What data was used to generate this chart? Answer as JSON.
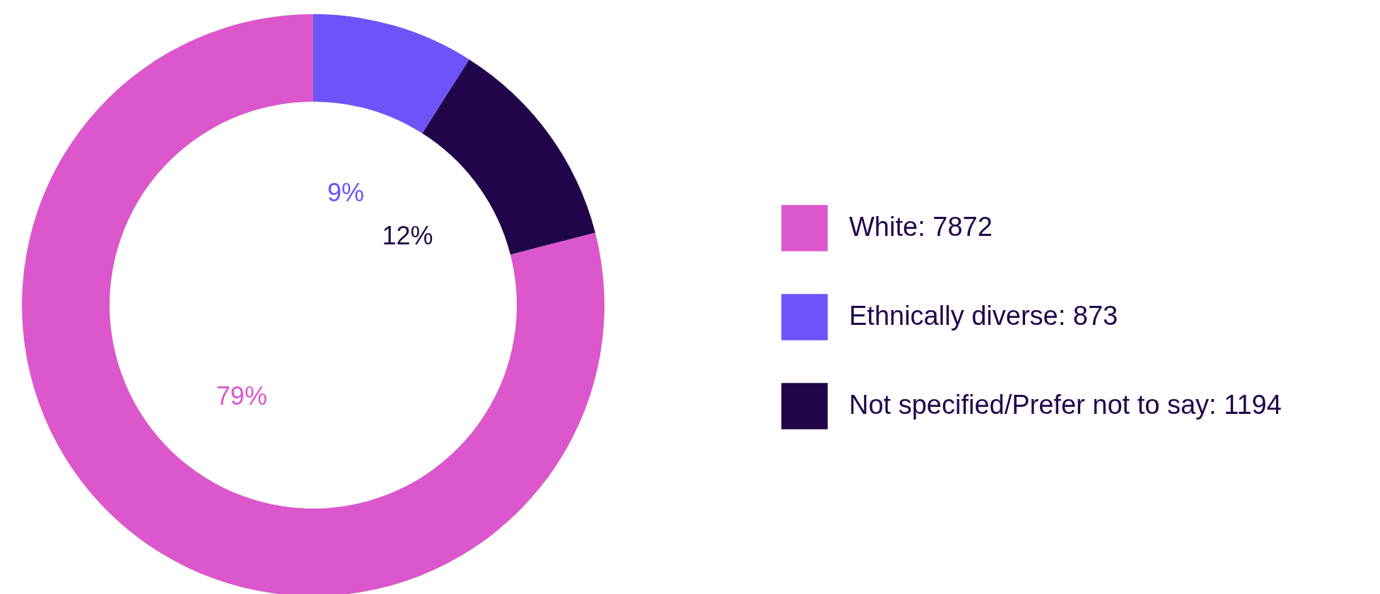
{
  "chart_data": {
    "type": "donut",
    "categories": [
      "White: 7872",
      "Ethnically diverse: 873",
      "Not specified/Prefer not to say: 1194"
    ],
    "values": [
      79,
      9,
      12
    ],
    "colors": [
      "#db57cb",
      "#6c54f9",
      "#21054a"
    ],
    "value_labels": [
      "79%",
      "9%",
      "12%"
    ],
    "legend": "right"
  }
}
